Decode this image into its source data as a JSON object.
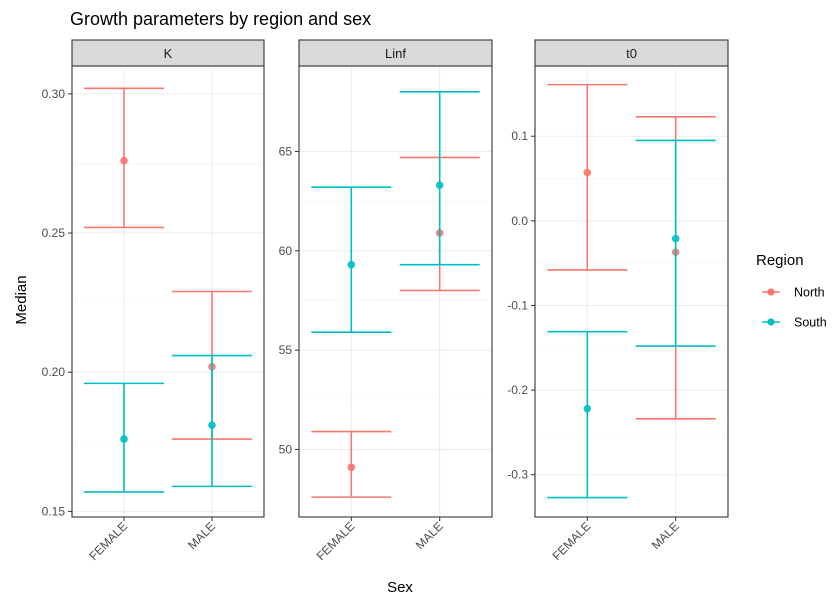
{
  "chart_data": {
    "type": "errorbar",
    "title": "Growth parameters by region and sex",
    "xlabel": "Sex",
    "ylabel": "Median",
    "categories": [
      "FEMALE",
      "MALE"
    ],
    "legend": {
      "title": "Region",
      "position": "right",
      "entries": [
        {
          "name": "North",
          "color": "#F8766D"
        },
        {
          "name": "South",
          "color": "#00BFC4"
        }
      ]
    },
    "panels": [
      {
        "name": "K",
        "ylim": [
          0.148,
          0.31
        ],
        "yticks": [
          0.15,
          0.2,
          0.25,
          0.3
        ],
        "ytick_labels": [
          "0.15",
          "0.20",
          "0.25",
          "0.30"
        ],
        "series": [
          {
            "name": "North",
            "points": [
              {
                "x": "FEMALE",
                "median": 0.276,
                "lower": 0.252,
                "upper": 0.302
              },
              {
                "x": "MALE",
                "median": 0.202,
                "lower": 0.176,
                "upper": 0.229
              }
            ]
          },
          {
            "name": "South",
            "points": [
              {
                "x": "FEMALE",
                "median": 0.176,
                "lower": 0.157,
                "upper": 0.196
              },
              {
                "x": "MALE",
                "median": 0.181,
                "lower": 0.159,
                "upper": 0.206
              }
            ]
          }
        ]
      },
      {
        "name": "Linf",
        "ylim": [
          46.6,
          69.3
        ],
        "yticks": [
          50,
          55,
          60,
          65
        ],
        "ytick_labels": [
          "50",
          "55",
          "60",
          "65"
        ],
        "series": [
          {
            "name": "North",
            "points": [
              {
                "x": "FEMALE",
                "median": 49.1,
                "lower": 47.6,
                "upper": 50.9
              },
              {
                "x": "MALE",
                "median": 60.9,
                "lower": 58.0,
                "upper": 64.7
              }
            ]
          },
          {
            "name": "South",
            "points": [
              {
                "x": "FEMALE",
                "median": 59.3,
                "lower": 55.9,
                "upper": 63.2
              },
              {
                "x": "MALE",
                "median": 63.3,
                "lower": 59.3,
                "upper": 68.0
              }
            ]
          }
        ]
      },
      {
        "name": "t0",
        "ylim": [
          -0.35,
          0.183
        ],
        "yticks": [
          -0.3,
          -0.2,
          -0.1,
          0.0,
          0.1
        ],
        "ytick_labels": [
          "-0.3",
          "-0.2",
          "-0.1",
          "0.0",
          "0.1"
        ],
        "series": [
          {
            "name": "North",
            "points": [
              {
                "x": "FEMALE",
                "median": 0.057,
                "lower": -0.058,
                "upper": 0.161
              },
              {
                "x": "MALE",
                "median": -0.037,
                "lower": -0.234,
                "upper": 0.123
              }
            ]
          },
          {
            "name": "South",
            "points": [
              {
                "x": "FEMALE",
                "median": -0.222,
                "lower": -0.327,
                "upper": -0.131
              },
              {
                "x": "MALE",
                "median": -0.021,
                "lower": -0.148,
                "upper": 0.095
              }
            ]
          }
        ]
      }
    ],
    "grid": true
  }
}
